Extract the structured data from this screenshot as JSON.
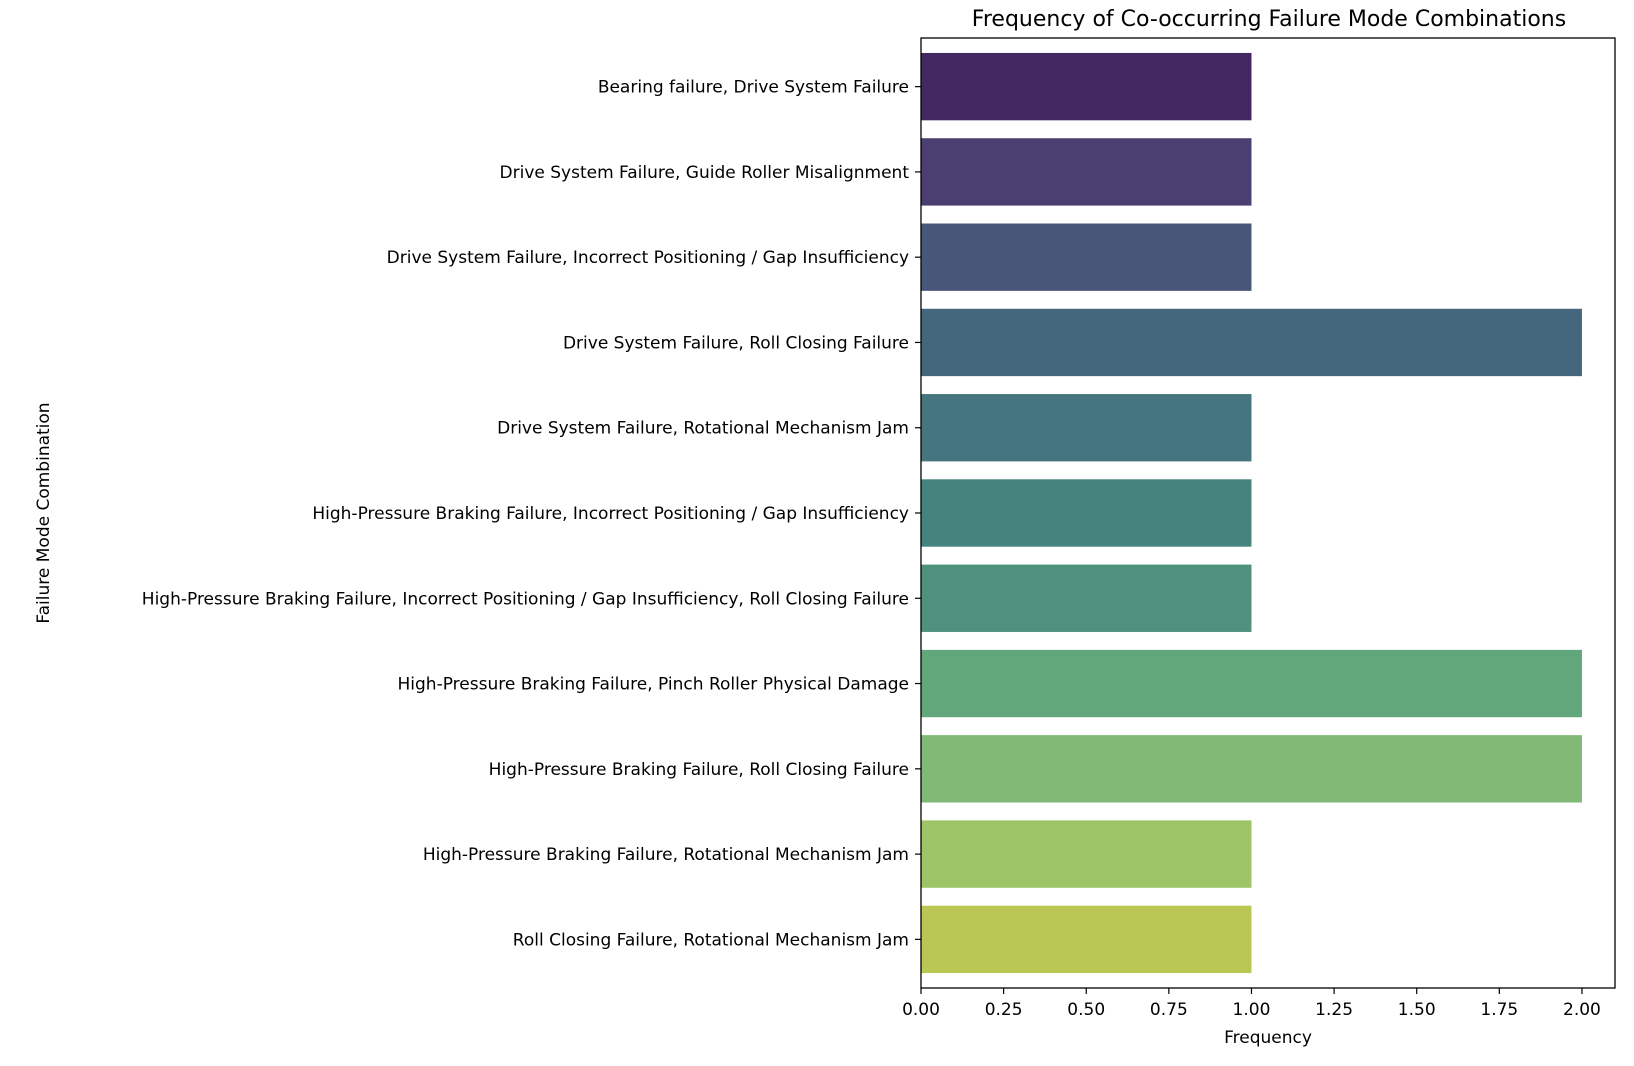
{
  "chart_data": {
    "type": "bar",
    "orientation": "horizontal",
    "title": "Frequency of Co-occurring Failure Mode Combinations",
    "xlabel": "Frequency",
    "ylabel": "Failure Mode Combination",
    "xlim": [
      0,
      2.1
    ],
    "x_ticks": [
      "0.00",
      "0.25",
      "0.50",
      "0.75",
      "1.00",
      "1.25",
      "1.50",
      "1.75",
      "2.00"
    ],
    "grid": false,
    "categories": [
      "Bearing failure, Drive System Failure",
      "Drive System Failure, Guide Roller Misalignment",
      "Drive System Failure, Incorrect Positioning / Gap Insufficiency",
      "Drive System Failure, Roll Closing Failure",
      "Drive System Failure, Rotational Mechanism Jam",
      "High-Pressure Braking Failure, Incorrect Positioning / Gap Insufficiency",
      "High-Pressure Braking Failure, Incorrect Positioning / Gap Insufficiency, Roll Closing Failure",
      "High-Pressure Braking Failure, Pinch Roller Physical Damage",
      "High-Pressure Braking Failure, Roll Closing Failure",
      "High-Pressure Braking Failure, Rotational Mechanism Jam",
      "Roll Closing Failure, Rotational Mechanism Jam"
    ],
    "values": [
      1,
      1,
      1,
      2,
      1,
      1,
      1,
      2,
      2,
      1,
      1
    ],
    "colors": [
      "#432760",
      "#4a3f70",
      "#475679",
      "#45677d",
      "#45767f",
      "#46837d",
      "#4e927d",
      "#62a77b",
      "#80ba76",
      "#9dc466",
      "#bac853"
    ]
  }
}
